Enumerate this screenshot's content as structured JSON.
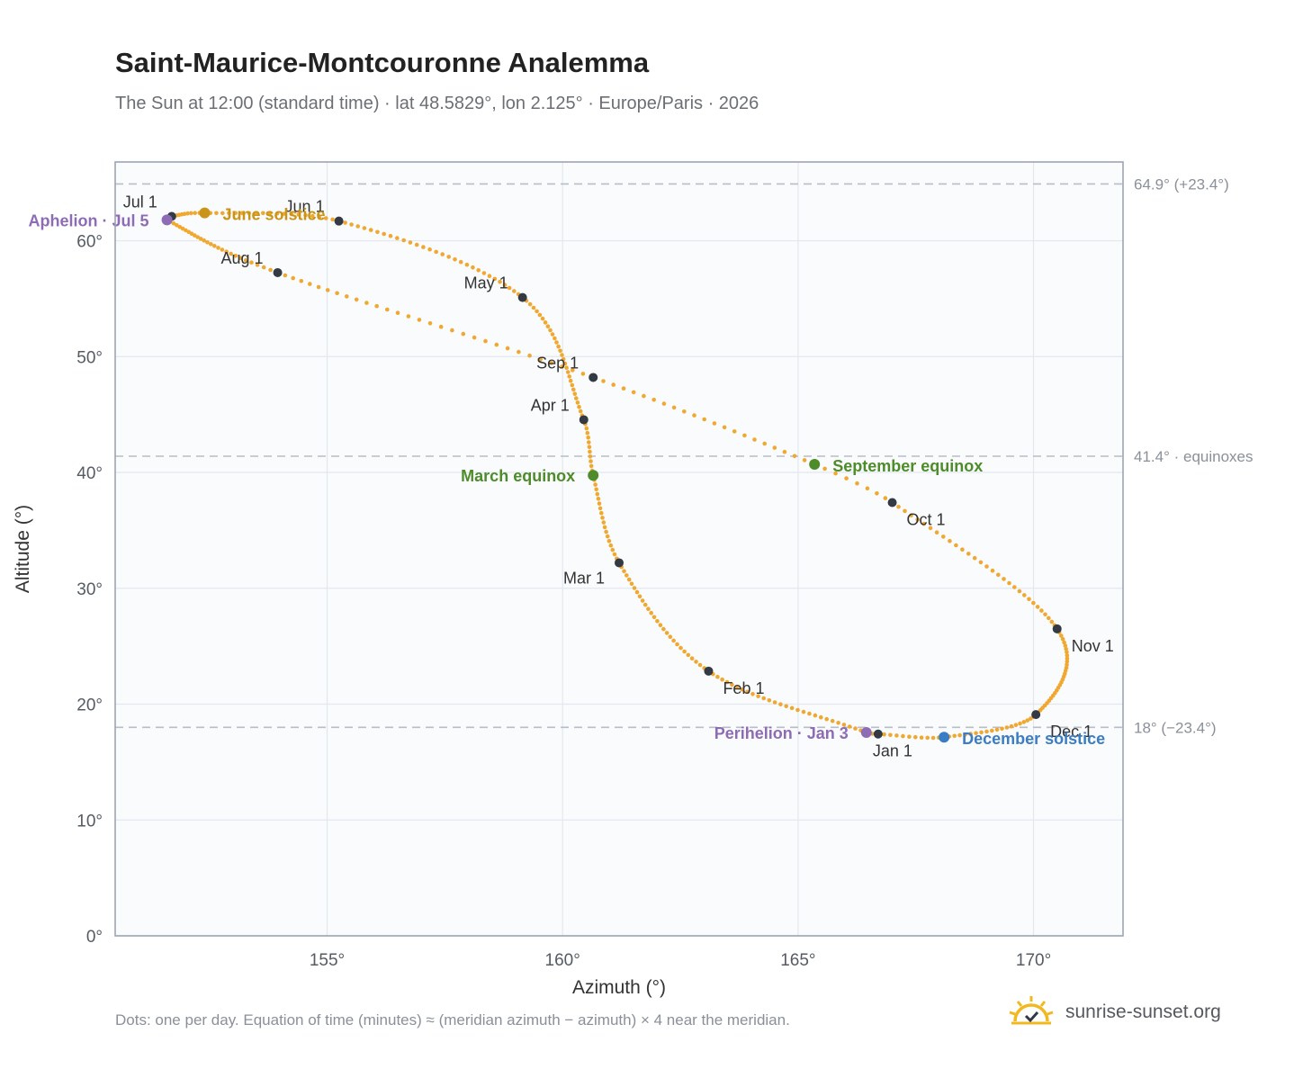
{
  "title": "Saint-Maurice-Montcouronne Analemma",
  "subtitle": "The Sun at 12:00 (standard time) · lat 48.5829°, lon 2.125° · Europe/Paris · 2026",
  "footnote": "Dots: one per day. Equation of time (minutes) ≈ (meridian azimuth − azimuth) × 4 near the meridian.",
  "brand": {
    "name": "sunrise-sunset.org",
    "logo_icon": "sun-check-logo-icon"
  },
  "colors": {
    "path": "#f0a830",
    "month_marker": "#333a44",
    "solstice_june": "#c99418",
    "solstice_december": "#3b7dc4",
    "equinox": "#4e8c2a",
    "apsis": "#8d6cb5",
    "reference_line": "#b7bec7",
    "plot_background": "#f9fbfd",
    "plot_border": "#9aa5b4"
  },
  "chart_data": {
    "type": "scatter",
    "xlabel": "Azimuth (°)",
    "ylabel": "Altitude (°)",
    "xlim": [
      150.5,
      171.9
    ],
    "ylim": [
      0,
      66.8
    ],
    "xticks": [
      155,
      160,
      165,
      170
    ],
    "yticks": [
      0,
      10,
      20,
      30,
      40,
      50,
      60
    ],
    "xtick_labels": [
      "155°",
      "160°",
      "165°",
      "170°"
    ],
    "ytick_labels": [
      "0°",
      "10°",
      "20°",
      "30°",
      "40°",
      "50°",
      "60°"
    ],
    "grid": true,
    "series": [
      {
        "marker": "dot",
        "points_description_omitted": false,
        "key_points": [
          {
            "date": "01-01",
            "x": 166.7,
            "y": 17.42
          },
          {
            "date": "01-03",
            "x": 166.45,
            "y": 17.55
          },
          {
            "date": "02-01",
            "x": 163.1,
            "y": 22.85
          },
          {
            "date": "03-01",
            "x": 161.2,
            "y": 32.2
          },
          {
            "date": "03-20",
            "x": 160.65,
            "y": 39.75
          },
          {
            "date": "04-01",
            "x": 160.45,
            "y": 44.55
          },
          {
            "date": "05-01",
            "x": 159.15,
            "y": 55.1
          },
          {
            "date": "06-01",
            "x": 155.25,
            "y": 61.7
          },
          {
            "date": "06-21",
            "x": 152.4,
            "y": 62.4
          },
          {
            "date": "07-01",
            "x": 151.7,
            "y": 62.1
          },
          {
            "date": "07-05",
            "x": 151.6,
            "y": 61.8
          },
          {
            "date": "08-01",
            "x": 153.95,
            "y": 57.25
          },
          {
            "date": "09-01",
            "x": 160.65,
            "y": 48.2
          },
          {
            "date": "09-23",
            "x": 165.35,
            "y": 40.7
          },
          {
            "date": "10-01",
            "x": 167.0,
            "y": 37.4
          },
          {
            "date": "11-01",
            "x": 170.5,
            "y": 26.5
          },
          {
            "date": "12-01",
            "x": 170.05,
            "y": 19.1
          },
          {
            "date": "12-21",
            "x": 168.1,
            "y": 17.15
          }
        ]
      }
    ],
    "month_markers": [
      {
        "label": "Jan 1",
        "x": 166.7,
        "y": 17.42,
        "anchor": "below"
      },
      {
        "label": "Feb 1",
        "x": 163.1,
        "y": 22.85,
        "anchor": "below-right"
      },
      {
        "label": "Mar 1",
        "x": 161.2,
        "y": 32.2,
        "anchor": "left"
      },
      {
        "label": "Apr 1",
        "x": 160.45,
        "y": 44.55,
        "anchor": "upper-left"
      },
      {
        "label": "May 1",
        "x": 159.15,
        "y": 55.1,
        "anchor": "upper-left"
      },
      {
        "label": "Jun 1",
        "x": 155.25,
        "y": 61.7,
        "anchor": "upper-left"
      },
      {
        "label": "Jul 1",
        "x": 151.7,
        "y": 62.1,
        "anchor": "upper-left"
      },
      {
        "label": "Aug 1",
        "x": 153.95,
        "y": 57.25,
        "anchor": "upper-left"
      },
      {
        "label": "Sep 1",
        "x": 160.65,
        "y": 48.2,
        "anchor": "upper-left"
      },
      {
        "label": "Oct 1",
        "x": 167.0,
        "y": 37.4,
        "anchor": "below-right"
      },
      {
        "label": "Nov 1",
        "x": 170.5,
        "y": 26.5,
        "anchor": "below-right"
      },
      {
        "label": "Dec 1",
        "x": 170.05,
        "y": 19.1,
        "anchor": "below-right"
      }
    ],
    "events": [
      {
        "label": "June solstice",
        "x": 152.4,
        "y": 62.4,
        "color_key": "solstice_june",
        "anchor": "right"
      },
      {
        "label": "December solstice",
        "x": 168.1,
        "y": 17.15,
        "color_key": "solstice_december",
        "anchor": "right"
      },
      {
        "label": "March equinox",
        "x": 160.65,
        "y": 39.75,
        "color_key": "equinox",
        "anchor": "left"
      },
      {
        "label": "September equinox",
        "x": 165.35,
        "y": 40.7,
        "color_key": "equinox",
        "anchor": "right"
      },
      {
        "label": "Aphelion · Jul 5",
        "x": 151.6,
        "y": 61.8,
        "color_key": "apsis",
        "anchor": "left"
      },
      {
        "label": "Perihelion · Jan 3",
        "x": 166.45,
        "y": 17.55,
        "color_key": "apsis",
        "anchor": "left"
      }
    ],
    "reference_lines": [
      {
        "y": 64.9,
        "label": "64.9° (+23.4°)"
      },
      {
        "y": 41.4,
        "label": "41.4° · equinoxes"
      },
      {
        "y": 18.0,
        "label": "18° (−23.4°)"
      }
    ]
  }
}
